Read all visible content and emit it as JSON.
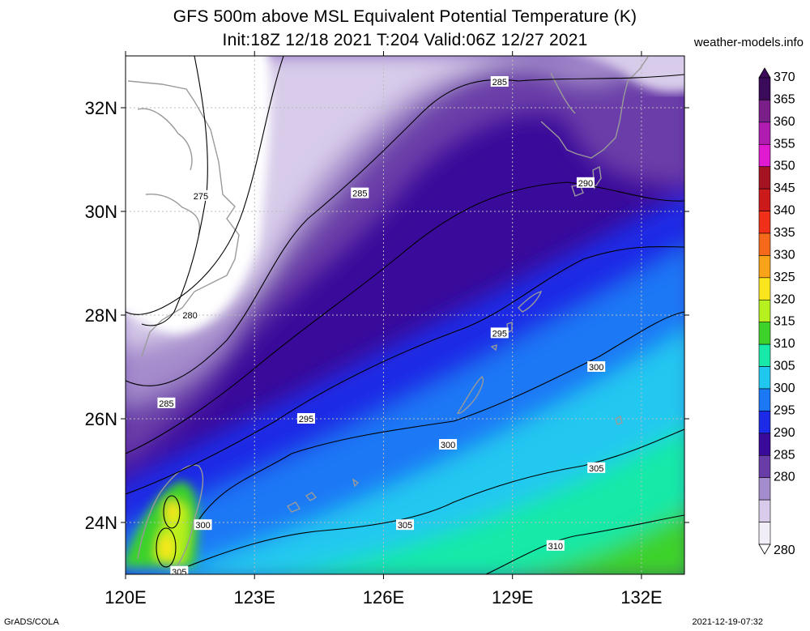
{
  "title_line1": "GFS 500m above MSL Equivalent Potential Temperature (K)",
  "title_line2": "Init:18Z 12/18 2021 T:204 Valid:06Z 12/27 2021",
  "site": "weather-models.info",
  "footer_left": "GrADS/COLA",
  "footer_right": "2021-12-19-07:32",
  "map": {
    "lon_range": [
      120,
      133
    ],
    "lat_range": [
      23,
      33
    ],
    "lon_ticks": [
      {
        "lon": 120,
        "label": "120E"
      },
      {
        "lon": 123,
        "label": "123E"
      },
      {
        "lon": 126,
        "label": "126E"
      },
      {
        "lon": 129,
        "label": "129E"
      },
      {
        "lon": 132,
        "label": "132E"
      }
    ],
    "lat_ticks": [
      {
        "lat": 24,
        "label": "24N"
      },
      {
        "lat": 26,
        "label": "26N"
      },
      {
        "lat": 28,
        "label": "28N"
      },
      {
        "lat": 30,
        "label": "30N"
      },
      {
        "lat": 32,
        "label": "32N"
      }
    ],
    "grid": true,
    "contour_labels": [
      {
        "text": "275",
        "lon": 121.75,
        "lat": 30.3
      },
      {
        "text": "280",
        "lon": 121.5,
        "lat": 28.0
      },
      {
        "text": "285",
        "lon": 120.95,
        "lat": 26.3
      },
      {
        "text": "285",
        "lon": 125.45,
        "lat": 30.35
      },
      {
        "text": "285",
        "lon": 128.7,
        "lat": 32.5
      },
      {
        "text": "290",
        "lon": 130.7,
        "lat": 30.55
      },
      {
        "text": "295",
        "lon": 124.2,
        "lat": 26.0
      },
      {
        "text": "295",
        "lon": 128.7,
        "lat": 27.65
      },
      {
        "text": "300",
        "lon": 121.8,
        "lat": 23.95
      },
      {
        "text": "300",
        "lon": 127.5,
        "lat": 25.5
      },
      {
        "text": "300",
        "lon": 130.95,
        "lat": 27.0
      },
      {
        "text": "305",
        "lon": 121.25,
        "lat": 23.05
      },
      {
        "text": "305",
        "lon": 126.5,
        "lat": 23.95
      },
      {
        "text": "305",
        "lon": 130.95,
        "lat": 25.05
      },
      {
        "text": "310",
        "lon": 130.0,
        "lat": 23.55
      }
    ]
  },
  "colorbar": {
    "min_label": "280",
    "max_label": "370",
    "levels": [
      {
        "value": "370",
        "color": "#3c0a5a"
      },
      {
        "value": "365",
        "color": "#7a1f8a"
      },
      {
        "value": "360",
        "color": "#b01bb0"
      },
      {
        "value": "355",
        "color": "#e01ad0"
      },
      {
        "value": "350",
        "color": "#a31420"
      },
      {
        "value": "345",
        "color": "#cc1a1a"
      },
      {
        "value": "340",
        "color": "#f03018"
      },
      {
        "value": "335",
        "color": "#f56a1a"
      },
      {
        "value": "330",
        "color": "#f9a31a"
      },
      {
        "value": "325",
        "color": "#fbe61e"
      },
      {
        "value": "320",
        "color": "#b6f01e"
      },
      {
        "value": "315",
        "color": "#3cd22a"
      },
      {
        "value": "310",
        "color": "#18e9a8"
      },
      {
        "value": "305",
        "color": "#20c8f0"
      },
      {
        "value": "300",
        "color": "#1a78f5"
      },
      {
        "value": "295",
        "color": "#1a2ae6"
      },
      {
        "value": "290",
        "color": "#3a0a9a"
      },
      {
        "value": "285",
        "color": "#6a3ca8"
      },
      {
        "value": "280",
        "color": "#a58ccc"
      }
    ],
    "extra_colors": [
      "#d8ccea",
      "#f2eef8"
    ]
  }
}
